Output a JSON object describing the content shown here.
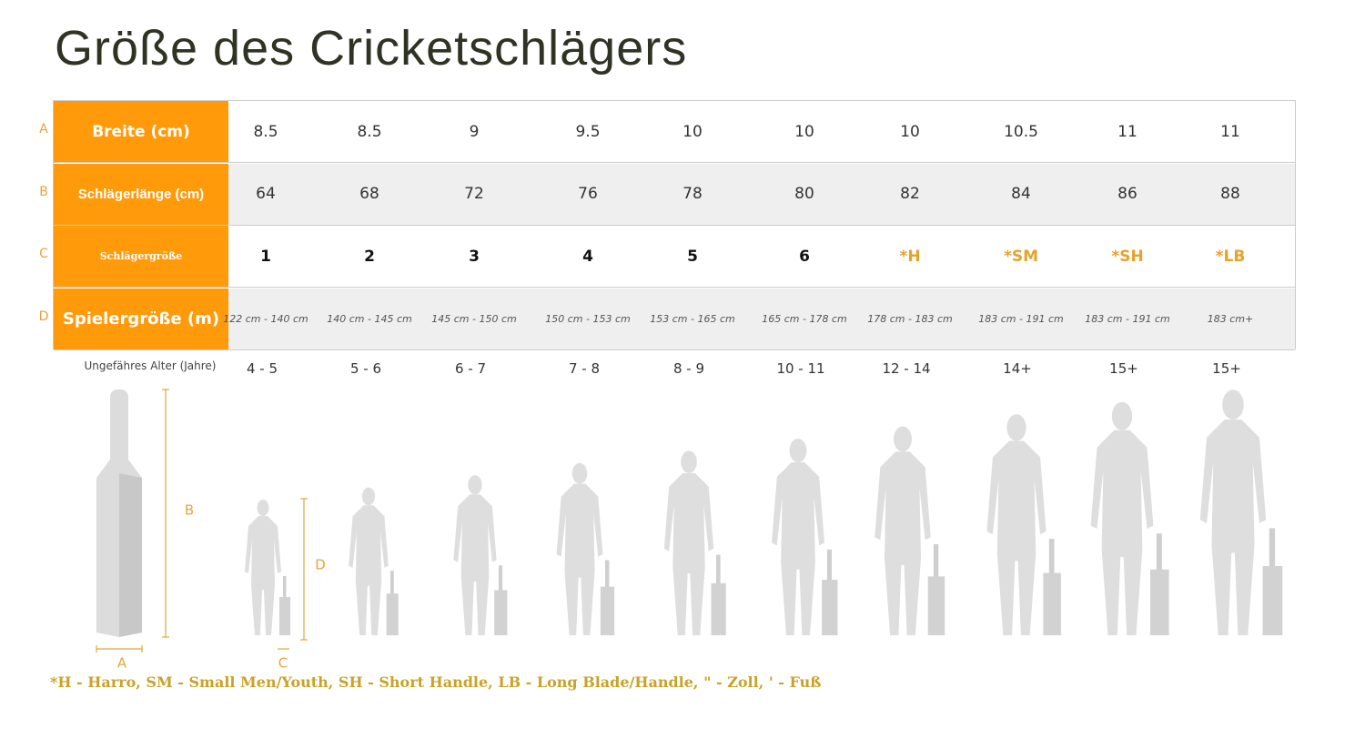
{
  "title": "Größe des Cricketschlägers",
  "table": {
    "rows": [
      {
        "letter": "A",
        "label": "Breite (cm)",
        "cells": [
          "8.5",
          "8.5",
          "9",
          "9.5",
          "10",
          "10",
          "10",
          "10.5",
          "11",
          "11"
        ]
      },
      {
        "letter": "B",
        "label": "Schlägerlänge (cm)",
        "cells": [
          "64",
          "68",
          "72",
          "76",
          "78",
          "80",
          "82",
          "84",
          "86",
          "88"
        ]
      },
      {
        "letter": "C",
        "label": "Schlägergröße",
        "cells": [
          "1",
          "2",
          "3",
          "4",
          "5",
          "6",
          "*H",
          "*SM",
          "*SH",
          "*LB"
        ]
      },
      {
        "letter": "D",
        "label": "Spielergröße (m)",
        "cells": [
          "122 cm - 140 cm",
          "140 cm - 145 cm",
          "145 cm - 150 cm",
          "150 cm - 153 cm",
          "153 cm - 165 cm",
          "165 cm - 178 cm",
          "178 cm - 183 cm",
          "183 cm - 191 cm",
          "183 cm - 191 cm",
          "183 cm+"
        ]
      }
    ]
  },
  "age": {
    "label": "Ungefähres Alter (Jahre)",
    "values": [
      "4 - 5",
      "5 - 6",
      "6 - 7",
      "7 - 8",
      "8 - 9",
      "10 - 11",
      "12 - 14",
      "14+",
      "15+",
      "15+"
    ]
  },
  "diagram": {
    "bat_width": "A",
    "bat_length": "B",
    "handle": "C",
    "player_height": "D"
  },
  "footnote": "*H - Harro, SM - Small Men/Youth, SH - Short Handle, LB - Long Blade/Handle, \" - Zoll, ' - Fuß"
}
